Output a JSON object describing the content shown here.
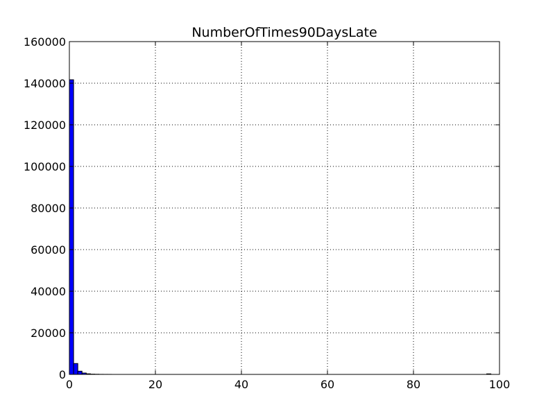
{
  "chart_data": {
    "type": "bar",
    "title": "NumberOfTimes90DaysLate",
    "xlabel": "",
    "ylabel": "",
    "xlim": [
      0,
      100
    ],
    "ylim": [
      0,
      160000
    ],
    "x_ticks": [
      0,
      20,
      40,
      60,
      80,
      100
    ],
    "y_ticks": [
      0,
      20000,
      40000,
      60000,
      80000,
      100000,
      120000,
      140000,
      160000
    ],
    "grid": true,
    "bar_color": "#0000ff",
    "bins": [
      {
        "x0": 0.0,
        "x1": 0.98,
        "value": 141662
      },
      {
        "x0": 0.98,
        "x1": 1.96,
        "value": 5243
      },
      {
        "x0": 1.96,
        "x1": 2.94,
        "value": 1555
      },
      {
        "x0": 2.94,
        "x1": 3.92,
        "value": 667
      },
      {
        "x0": 3.92,
        "x1": 4.9,
        "value": 291
      },
      {
        "x0": 4.9,
        "x1": 5.88,
        "value": 131
      },
      {
        "x0": 5.88,
        "x1": 6.86,
        "value": 80
      },
      {
        "x0": 6.86,
        "x1": 7.84,
        "value": 38
      },
      {
        "x0": 7.84,
        "x1": 8.82,
        "value": 21
      },
      {
        "x0": 8.82,
        "x1": 9.8,
        "value": 19
      },
      {
        "x0": 96.04,
        "x1": 97.02,
        "value": 5
      },
      {
        "x0": 97.02,
        "x1": 98.0,
        "value": 264
      }
    ]
  }
}
